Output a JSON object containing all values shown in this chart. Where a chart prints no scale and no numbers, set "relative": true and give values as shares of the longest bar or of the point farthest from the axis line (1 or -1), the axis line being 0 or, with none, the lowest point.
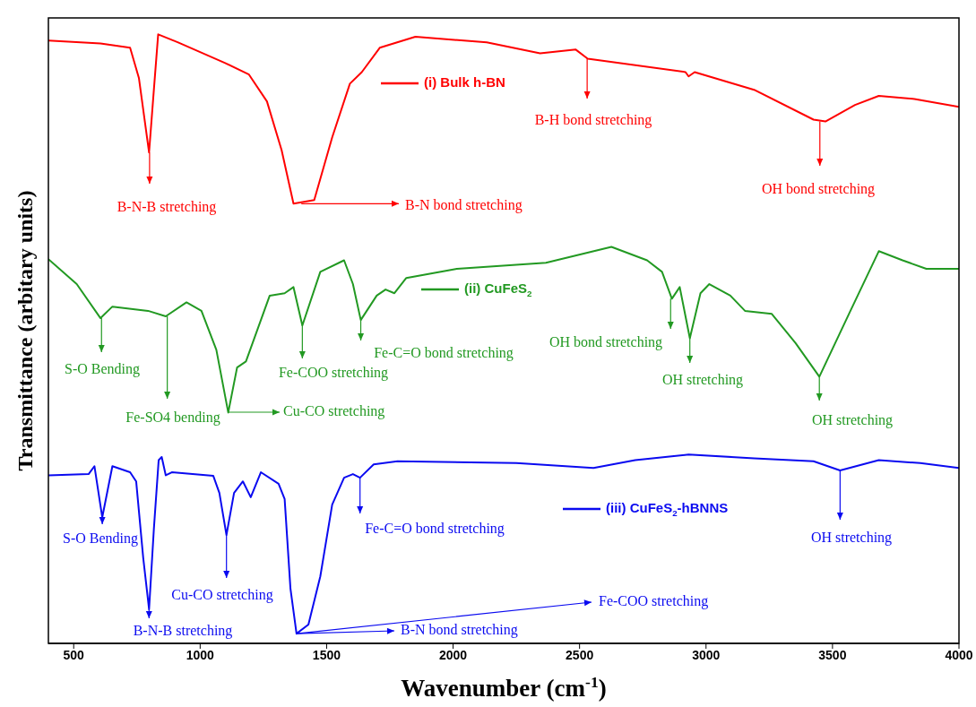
{
  "chart_data": {
    "type": "line",
    "relative": true,
    "legend": "top",
    "xlabel": "Wavenumber (cm$^{-1}$)",
    "ylabel": "Transmittance (arbitary units)",
    "xlim": [
      400,
      4000
    ],
    "xticks": [
      500,
      1000,
      1500,
      2000,
      2500,
      3000,
      3500,
      4000
    ],
    "series": [
      {
        "name": "(i) Bulk h-BN",
        "color": "#ff0000",
        "x": [
          400,
          606,
          723,
          758,
          798,
          817,
          834,
          911,
          1099,
          1193,
          1264,
          1322,
          1369,
          1451,
          1522,
          1592,
          1639,
          1710,
          1851,
          2133,
          2344,
          2485,
          2532,
          2919,
          2931,
          2955,
          3190,
          3425,
          3472,
          3589,
          3683,
          3824,
          4000
        ],
        "values": [
          0.99,
          0.985,
          0.978,
          0.928,
          0.806,
          0.909,
          1.0,
          0.987,
          0.953,
          0.934,
          0.89,
          0.81,
          0.722,
          0.728,
          0.831,
          0.919,
          0.938,
          0.978,
          0.996,
          0.987,
          0.969,
          0.975,
          0.96,
          0.938,
          0.931,
          0.938,
          0.909,
          0.86,
          0.857,
          0.884,
          0.899,
          0.894,
          0.881
        ]
      },
      {
        "name": "(ii) CuFeS$_{2}$",
        "color": "#229922",
        "x": [
          400,
          512,
          606,
          653,
          794,
          864,
          946,
          1005,
          1064,
          1111,
          1146,
          1181,
          1275,
          1334,
          1369,
          1404,
          1475,
          1569,
          1604,
          1635,
          1698,
          1733,
          1768,
          1815,
          2015,
          2367,
          2626,
          2767,
          2826,
          2865,
          2896,
          2936,
          2978,
          3013,
          3096,
          3154,
          3260,
          3354,
          3448,
          3565,
          3683,
          3777,
          3871,
          4000
        ],
        "values": [
          0.631,
          0.59,
          0.534,
          0.553,
          0.546,
          0.537,
          0.56,
          0.546,
          0.482,
          0.379,
          0.453,
          0.463,
          0.571,
          0.575,
          0.585,
          0.522,
          0.61,
          0.629,
          0.59,
          0.531,
          0.571,
          0.581,
          0.575,
          0.6,
          0.615,
          0.625,
          0.651,
          0.629,
          0.61,
          0.566,
          0.585,
          0.501,
          0.575,
          0.59,
          0.571,
          0.546,
          0.541,
          0.493,
          0.438,
          0.541,
          0.644,
          0.629,
          0.615,
          0.615
        ]
      },
      {
        "name": "(iii) CuFeS$_{2}$-hBNNS",
        "color": "#0a0af0",
        "x": [
          400,
          559,
          582,
          613,
          653,
          723,
          747,
          775,
          798,
          817,
          836,
          848,
          864,
          888,
          1052,
          1076,
          1104,
          1134,
          1169,
          1200,
          1240,
          1310,
          1334,
          1357,
          1381,
          1428,
          1475,
          1522,
          1569,
          1604,
          1632,
          1686,
          1780,
          2250,
          2555,
          2720,
          2931,
          3190,
          3425,
          3530,
          3683,
          3847,
          4000
        ],
        "values": [
          0.276,
          0.278,
          0.291,
          0.207,
          0.291,
          0.281,
          0.266,
          0.14,
          0.056,
          0.188,
          0.301,
          0.306,
          0.276,
          0.281,
          0.275,
          0.247,
          0.178,
          0.247,
          0.266,
          0.24,
          0.281,
          0.262,
          0.237,
          0.09,
          0.016,
          0.031,
          0.11,
          0.228,
          0.272,
          0.278,
          0.272,
          0.294,
          0.299,
          0.296,
          0.288,
          0.301,
          0.31,
          0.304,
          0.299,
          0.284,
          0.301,
          0.296,
          0.288
        ]
      }
    ],
    "annotations": [
      {
        "text": "B-N-B stretching",
        "x": 800,
        "y": 0.806
      },
      {
        "text": "B-N bond stretching",
        "x": 1400,
        "y": 0.722
      },
      {
        "text": "B-H bond stretching",
        "x": 2530,
        "y": 0.96
      },
      {
        "text": "OH bond stretching",
        "x": 3450,
        "y": 0.857
      },
      {
        "text": "S-O Bending",
        "x": 610,
        "y": 0.534
      },
      {
        "text": "Fe-SO4 bending",
        "x": 870,
        "y": 0.537
      },
      "Cu-CO stretching",
      {
        "text": "Fe-COO stretching",
        "x": 1404,
        "y": 0.522
      },
      {
        "text": "Fe-C=O bond stretching",
        "x": 1635,
        "y": 0.531
      },
      {
        "text": "OH bond stretching",
        "x": 2860,
        "y": 0.566
      },
      {
        "text": "OH stretching",
        "x": 2936,
        "y": 0.501
      },
      {
        "text": "OH stretching",
        "x": 3448,
        "y": 0.438
      },
      {
        "text": "S-O Bending",
        "x": 613,
        "y": 0.207
      },
      {
        "text": "B-N-B stretching",
        "x": 798,
        "y": 0.056
      },
      {
        "text": "Cu-CO stretching",
        "x": 1104,
        "y": 0.178
      },
      {
        "text": "Fe-C=O bond stretching",
        "x": 1632,
        "y": 0.272
      },
      {
        "text": "OH stretching",
        "x": 3530,
        "y": 0.284
      },
      {
        "text": "B-N bond stretching",
        "x": 1381,
        "y": 0.016
      },
      {
        "text": "Fe-COO stretching",
        "x": 1381,
        "y": 0.016
      }
    ]
  }
}
